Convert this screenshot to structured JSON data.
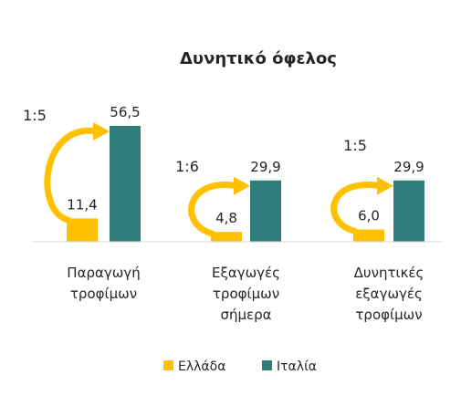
{
  "chart_data": {
    "type": "bar",
    "title": "Δυνητικό όφελος",
    "categories": [
      [
        "Παραγωγή",
        "τροφίμων"
      ],
      [
        "Εξαγωγές",
        "τροφίμων",
        "σήμερα"
      ],
      [
        "Δυνητικές",
        "εξαγωγές",
        "τροφίμων"
      ]
    ],
    "series": [
      {
        "name": "Ελλάδα",
        "color": "#FFC000",
        "values": [
          11.4,
          4.8,
          6.0
        ],
        "labels": [
          "11,4",
          "4,8",
          "6,0"
        ]
      },
      {
        "name": "Ιταλία",
        "color": "#2E7D7A",
        "values": [
          56.5,
          29.9,
          29.9
        ],
        "labels": [
          "56,5",
          "29,9",
          "29,9"
        ]
      }
    ],
    "annotations": {
      "ratios": [
        "1:5",
        "1:6",
        "1:5"
      ],
      "arrow_color": "#FFC000"
    },
    "ylim": [
      0,
      60
    ],
    "grid": false,
    "legend": "bottom"
  }
}
